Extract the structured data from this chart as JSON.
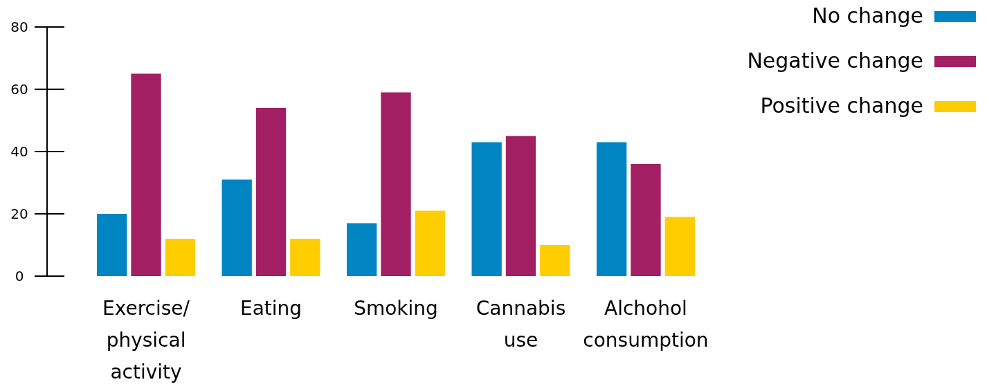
{
  "chart_data": {
    "type": "bar",
    "categories": [
      "Exercise/ physical activity",
      "Eating",
      "Smoking",
      "Cannabis use",
      "Alchohol consumption"
    ],
    "series": [
      {
        "name": "No change",
        "color": "#0085c2",
        "values": [
          20,
          31,
          17,
          43,
          43
        ]
      },
      {
        "name": "Negative change",
        "color": "#a31f63",
        "values": [
          65,
          54,
          59,
          45,
          36
        ]
      },
      {
        "name": "Positive change",
        "color": "#ffcd00",
        "values": [
          12,
          12,
          21,
          10,
          19
        ]
      }
    ],
    "ylim": [
      0,
      80
    ],
    "yticks": [
      0,
      20,
      40,
      60,
      80
    ],
    "grid": false,
    "legend": "top right"
  }
}
